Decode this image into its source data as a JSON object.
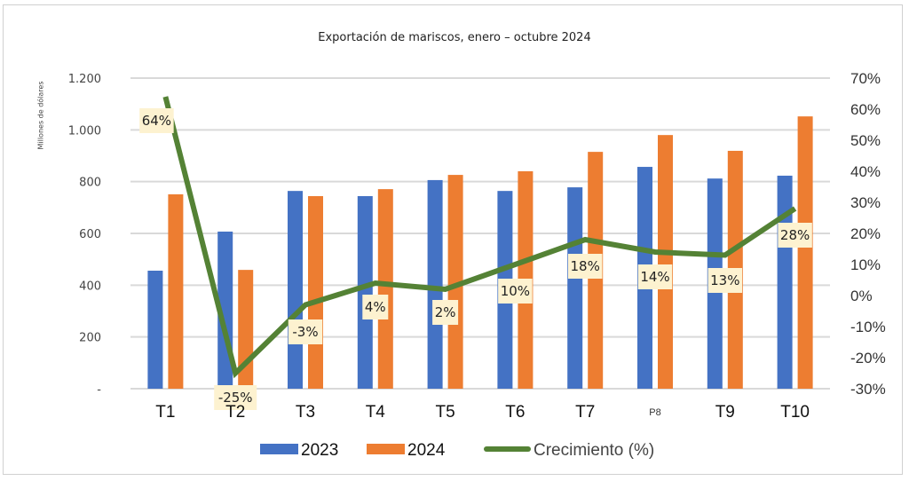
{
  "chart_data": {
    "type": "bar",
    "title": "Exportación de mariscos, enero – octubre 2024",
    "ylabel": "Millones de dólares",
    "y2label": "",
    "xlabel": "",
    "categories": [
      "T1",
      "T2",
      "T3",
      "T4",
      "T5",
      "T6",
      "T7",
      "P8",
      "T9",
      "T10"
    ],
    "ylim": [
      0,
      1200
    ],
    "y_ticks": [
      0,
      200,
      400,
      600,
      800,
      1000,
      1200
    ],
    "y_tick_labels": [
      "-",
      "200",
      "400",
      "600",
      "800",
      "1.000",
      "1.200"
    ],
    "y2lim": [
      -30,
      70
    ],
    "y2_ticks": [
      -30,
      -20,
      -10,
      0,
      10,
      20,
      30,
      40,
      50,
      60,
      70
    ],
    "y2_tick_labels": [
      "-30%",
      "-20%",
      "-10%",
      "0%",
      "10%",
      "20%",
      "30%",
      "40%",
      "50%",
      "60%",
      "70%"
    ],
    "grid": true,
    "legend_position": "bottom",
    "series": [
      {
        "name": "2023",
        "type": "bar",
        "axis": "left",
        "color": "#4472c4",
        "values": [
          456,
          607,
          764,
          744,
          806,
          764,
          778,
          857,
          812,
          823
        ]
      },
      {
        "name": "2024",
        "type": "bar",
        "axis": "left",
        "color": "#ed7d31",
        "values": [
          751,
          459,
          744,
          771,
          826,
          840,
          915,
          980,
          919,
          1052
        ]
      },
      {
        "name": "Crecimiento (%)",
        "type": "line",
        "axis": "right",
        "color": "#548235",
        "values": [
          64,
          -25,
          -3,
          4,
          2,
          10,
          18,
          14,
          13,
          28
        ],
        "data_labels": [
          "64%",
          "-25%",
          "-3%",
          "4%",
          "2%",
          "10%",
          "18%",
          "14%",
          "13%",
          "28%"
        ]
      }
    ],
    "label_bg_color": "#fdf2d0"
  }
}
